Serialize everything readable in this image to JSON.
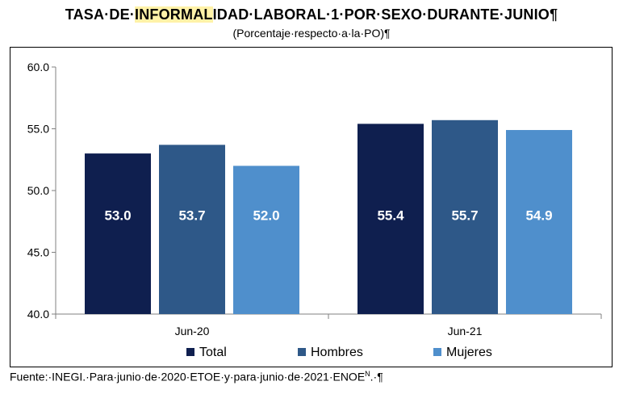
{
  "title": {
    "prefix": "TASA·DE·",
    "highlight": "INFORMAL",
    "suffix": "IDAD·LABORAL·1·POR·SEXO·DURANTE·JUNIO",
    "pilcrow": "¶"
  },
  "subtitle": "(Porcentaje·respecto·a·la·PO)¶",
  "source": {
    "text": "Fuente:·INEGI.·Para·junio·de·2020·ETOE·y·para·junio·de·2021·ENOE",
    "superscript": "N",
    "trailer": ".·¶"
  },
  "chart_data": {
    "type": "bar",
    "categories": [
      "Jun-20",
      "Jun-21"
    ],
    "series": [
      {
        "name": "Total",
        "color": "#0f1f4f",
        "values": [
          53.0,
          55.4
        ]
      },
      {
        "name": "Hombres",
        "color": "#2e5888",
        "values": [
          53.7,
          55.7
        ]
      },
      {
        "name": "Mujeres",
        "color": "#4f8fcc",
        "values": [
          52.0,
          54.9
        ]
      }
    ],
    "ylim": [
      40.0,
      60.0
    ],
    "yticks": [
      "40.0",
      "45.0",
      "50.0",
      "55.0",
      "60.0"
    ],
    "data_labels": [
      "53.0",
      "53.7",
      "52.0",
      "55.4",
      "55.7",
      "54.9"
    ],
    "legend_position": "bottom",
    "grid": false,
    "title": "TASA·DE·INFORMALIDAD·LABORAL·1·POR·SEXO·DURANTE·JUNIO¶",
    "subtitle": "(Porcentaje·respecto·a·la·PO)¶",
    "xlabel": "",
    "ylabel": ""
  }
}
